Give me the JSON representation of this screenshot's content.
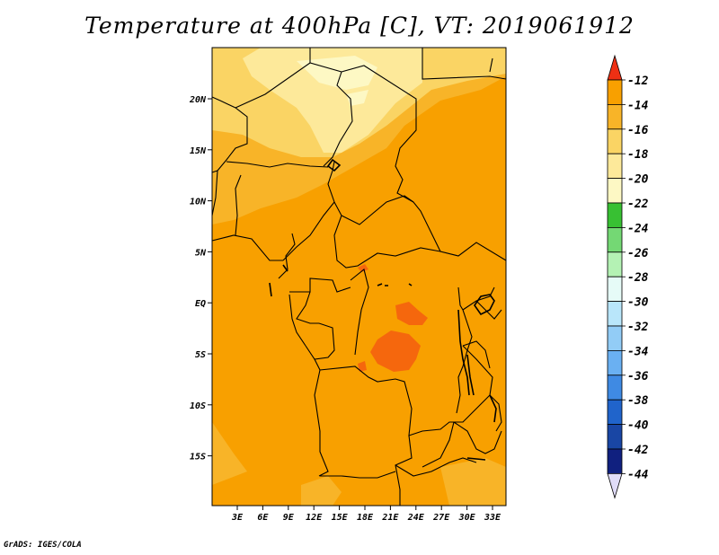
{
  "title": "Temperature at 400hPa [C], VT: 2019061912",
  "credit": "GrADS: IGES/COLA",
  "map": {
    "lat_labels": [
      "20N",
      "15N",
      "10N",
      "5N",
      "EQ",
      "5S",
      "10S",
      "15S"
    ],
    "lon_labels": [
      "3E",
      "6E",
      "9E",
      "12E",
      "15E",
      "18E",
      "21E",
      "24E",
      "27E",
      "30E",
      "33E"
    ]
  },
  "colorbar": {
    "labels": [
      "-12",
      "-14",
      "-16",
      "-18",
      "-20",
      "-22",
      "-24",
      "-26",
      "-28",
      "-30",
      "-32",
      "-34",
      "-36",
      "-38",
      "-40",
      "-42",
      "-44"
    ],
    "colors": [
      "#f5670d",
      "#f8a000",
      "#f8b428",
      "#fad464",
      "#fde99a",
      "#fdf8c4",
      "#38c033",
      "#74d874",
      "#b4f2b4",
      "#e6fbf7",
      "#b9e6fa",
      "#92ccf6",
      "#6ab0f2",
      "#3f8ae3",
      "#2064cb",
      "#1946a4",
      "#10207f"
    ],
    "top_arrow_color": "#ee3014",
    "bottom_arrow_color": "#e0dcf8"
  }
}
